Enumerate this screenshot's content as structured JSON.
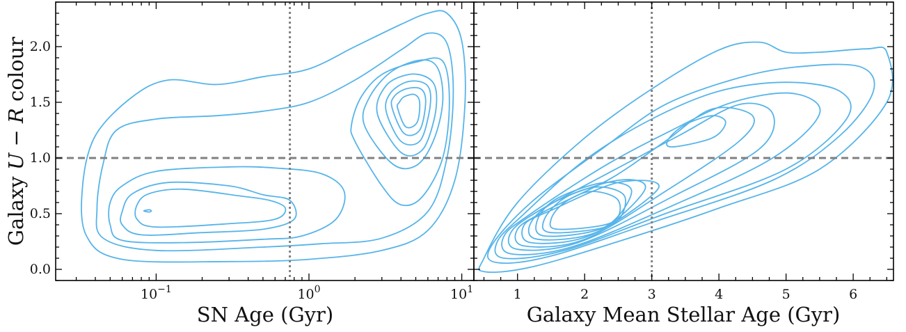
{
  "chart_data": [
    {
      "type": "contour",
      "xlabel": "SN Age (Gyr)",
      "ylabel": "Galaxy U − R colour",
      "ylabel_parts": {
        "prefix": "Galaxy ",
        "U": "U",
        "minus": " − ",
        "R": "R",
        "suffix": " colour"
      },
      "xscale": "log",
      "xlim": [
        0.022,
        12
      ],
      "ylim": [
        -0.1,
        2.4
      ],
      "x_ticks": [
        {
          "value": 0.1,
          "base": "10",
          "exp": "−1"
        },
        {
          "value": 1,
          "base": "10",
          "exp": "0"
        },
        {
          "value": 10,
          "base": "10",
          "exp": "1"
        }
      ],
      "y_ticks": [
        "0.0",
        "0.5",
        "1.0",
        "1.5",
        "2.0"
      ],
      "y_tick_values": [
        0.0,
        0.5,
        1.0,
        1.5,
        2.0
      ],
      "line_color": "#56b4e9",
      "reference_lines": {
        "horizontal_dashed_y": 1.0,
        "vertical_dotted_x": 0.75,
        "color": "#808080"
      },
      "contours": [
        {
          "level": 1,
          "points": [
            [
              0.033,
              0.75
            ],
            [
              0.035,
              0.3
            ],
            [
              0.06,
              0.09
            ],
            [
              0.3,
              0.07
            ],
            [
              1.0,
              0.09
            ],
            [
              3,
              0.17
            ],
            [
              6,
              0.35
            ],
            [
              9,
              0.8
            ],
            [
              10.5,
              1.5
            ],
            [
              10,
              2.05
            ],
            [
              8,
              2.3
            ],
            [
              6,
              2.3
            ],
            [
              4,
              2.2
            ],
            [
              2,
              2.0
            ],
            [
              1,
              1.8
            ],
            [
              0.5,
              1.73
            ],
            [
              0.25,
              1.66
            ],
            [
              0.12,
              1.7
            ],
            [
              0.07,
              1.55
            ],
            [
              0.04,
              1.2
            ]
          ]
        },
        {
          "level": 2,
          "points": [
            [
              0.041,
              0.55
            ],
            [
              0.045,
              0.28
            ],
            [
              0.1,
              0.17
            ],
            [
              0.5,
              0.2
            ],
            [
              1.2,
              0.23
            ],
            [
              3,
              0.28
            ],
            [
              6,
              0.52
            ],
            [
              8,
              1.0
            ],
            [
              8.8,
              1.6
            ],
            [
              8,
              2.03
            ],
            [
              6,
              2.12
            ],
            [
              4,
              1.97
            ],
            [
              2,
              1.7
            ],
            [
              1,
              1.5
            ],
            [
              0.5,
              1.42
            ],
            [
              0.25,
              1.38
            ],
            [
              0.1,
              1.35
            ],
            [
              0.055,
              1.25
            ],
            [
              0.045,
              0.95
            ]
          ]
        },
        {
          "level": 3,
          "points": [
            [
              0.05,
              0.4
            ],
            [
              0.06,
              0.26
            ],
            [
              0.15,
              0.24
            ],
            [
              0.5,
              0.27
            ],
            [
              0.9,
              0.3
            ],
            [
              1.5,
              0.45
            ],
            [
              1.7,
              0.7
            ],
            [
              1.2,
              0.86
            ],
            [
              0.6,
              0.91
            ],
            [
              0.3,
              0.92
            ],
            [
              0.1,
              0.88
            ],
            [
              0.06,
              0.75
            ],
            [
              0.05,
              0.6
            ]
          ]
        },
        {
          "level": 4,
          "points": [
            [
              0.06,
              0.4
            ],
            [
              0.08,
              0.31
            ],
            [
              0.2,
              0.33
            ],
            [
              0.5,
              0.36
            ],
            [
              0.8,
              0.45
            ],
            [
              0.75,
              0.62
            ],
            [
              0.5,
              0.67
            ],
            [
              0.3,
              0.75
            ],
            [
              0.12,
              0.78
            ],
            [
              0.07,
              0.68
            ],
            [
              0.06,
              0.52
            ]
          ]
        },
        {
          "level": 5,
          "points": [
            [
              0.075,
              0.45
            ],
            [
              0.1,
              0.38
            ],
            [
              0.3,
              0.41
            ],
            [
              0.6,
              0.45
            ],
            [
              0.7,
              0.55
            ],
            [
              0.55,
              0.62
            ],
            [
              0.35,
              0.66
            ],
            [
              0.15,
              0.72
            ],
            [
              0.09,
              0.68
            ],
            [
              0.075,
              0.58
            ]
          ]
        },
        {
          "level": 6,
          "points": [
            [
              0.083,
              0.525
            ],
            [
              0.09,
              0.515
            ],
            [
              0.093,
              0.525
            ],
            [
              0.09,
              0.535
            ]
          ]
        },
        {
          "level": 7,
          "points": [
            [
              2.0,
              1.15
            ],
            [
              3,
              0.75
            ],
            [
              4,
              0.58
            ],
            [
              5.5,
              0.65
            ],
            [
              7.5,
              1.0
            ],
            [
              8.3,
              1.5
            ],
            [
              7.5,
              1.87
            ],
            [
              5,
              1.86
            ],
            [
              3,
              1.75
            ],
            [
              2.2,
              1.55
            ],
            [
              1.9,
              1.3
            ]
          ]
        },
        {
          "level": 8,
          "points": [
            [
              2.3,
              1.3
            ],
            [
              3.5,
              0.95
            ],
            [
              5,
              0.93
            ],
            [
              6.5,
              1.15
            ],
            [
              7.5,
              1.5
            ],
            [
              7,
              1.8
            ],
            [
              5.5,
              1.88
            ],
            [
              3.5,
              1.78
            ],
            [
              2.5,
              1.55
            ]
          ]
        },
        {
          "level": 9,
          "points": [
            [
              2.8,
              1.4
            ],
            [
              4,
              1.05
            ],
            [
              5.5,
              1.07
            ],
            [
              6.6,
              1.35
            ],
            [
              6.8,
              1.6
            ],
            [
              6,
              1.72
            ],
            [
              4.5,
              1.75
            ],
            [
              3.2,
              1.65
            ]
          ]
        },
        {
          "level": 10,
          "points": [
            [
              3.2,
              1.42
            ],
            [
              4,
              1.15
            ],
            [
              5.3,
              1.15
            ],
            [
              6.1,
              1.4
            ],
            [
              6.2,
              1.6
            ],
            [
              5.5,
              1.68
            ],
            [
              4.3,
              1.68
            ],
            [
              3.4,
              1.58
            ]
          ]
        },
        {
          "level": 11,
          "points": [
            [
              3.5,
              1.45
            ],
            [
              4.2,
              1.22
            ],
            [
              5.3,
              1.25
            ],
            [
              5.8,
              1.5
            ],
            [
              5.4,
              1.62
            ],
            [
              4.3,
              1.62
            ],
            [
              3.6,
              1.55
            ]
          ]
        },
        {
          "level": 12,
          "points": [
            [
              3.8,
              1.45
            ],
            [
              4.3,
              1.28
            ],
            [
              5.1,
              1.32
            ],
            [
              5.3,
              1.5
            ],
            [
              4.9,
              1.57
            ],
            [
              4.2,
              1.55
            ],
            [
              3.9,
              1.5
            ]
          ]
        }
      ]
    },
    {
      "type": "contour",
      "xlabel": "Galaxy Mean Stellar Age (Gyr)",
      "xlim": [
        0.35,
        6.6
      ],
      "ylim": [
        -0.1,
        2.4
      ],
      "x_ticks": [
        "1",
        "2",
        "3",
        "4",
        "5",
        "6"
      ],
      "x_tick_values": [
        1,
        2,
        3,
        4,
        5,
        6
      ],
      "line_color": "#56b4e9",
      "reference_lines": {
        "horizontal_dashed_y": 1.0,
        "vertical_dotted_x": 3.0,
        "color": "#808080"
      },
      "contours": [
        {
          "level": 1,
          "points": [
            [
              0.5,
              0.1
            ],
            [
              0.5,
              -0.02
            ],
            [
              1.2,
              0.02
            ],
            [
              2.5,
              0.25
            ],
            [
              4,
              0.55
            ],
            [
              5.5,
              0.9
            ],
            [
              6.5,
              1.5
            ],
            [
              6.5,
              1.95
            ],
            [
              6.2,
              1.98
            ],
            [
              5.5,
              1.95
            ],
            [
              5,
              1.95
            ],
            [
              4.6,
              2.04
            ],
            [
              4,
              1.97
            ],
            [
              3,
              1.62
            ],
            [
              2,
              1.18
            ],
            [
              1,
              0.6
            ]
          ]
        },
        {
          "level": 2,
          "points": [
            [
              0.6,
              0.2
            ],
            [
              0.7,
              0.06
            ],
            [
              1.5,
              0.12
            ],
            [
              3,
              0.42
            ],
            [
              4.8,
              0.8
            ],
            [
              5.8,
              1.2
            ],
            [
              6.3,
              1.6
            ],
            [
              6.1,
              1.82
            ],
            [
              5.2,
              1.82
            ],
            [
              4.3,
              1.72
            ],
            [
              3.2,
              1.48
            ],
            [
              2.3,
              1.1
            ],
            [
              1.2,
              0.6
            ]
          ]
        },
        {
          "level": 3,
          "points": [
            [
              0.7,
              0.25
            ],
            [
              0.8,
              0.1
            ],
            [
              1.7,
              0.17
            ],
            [
              3.2,
              0.5
            ],
            [
              5,
              0.9
            ],
            [
              5.9,
              1.35
            ],
            [
              5.8,
              1.6
            ],
            [
              5,
              1.68
            ],
            [
              4,
              1.6
            ],
            [
              3,
              1.35
            ],
            [
              2,
              0.98
            ],
            [
              1.1,
              0.5
            ]
          ]
        },
        {
          "level": 4,
          "points": [
            [
              0.8,
              0.3
            ],
            [
              0.9,
              0.14
            ],
            [
              1.8,
              0.2
            ],
            [
              3.3,
              0.57
            ],
            [
              4.8,
              1.0
            ],
            [
              5.5,
              1.4
            ],
            [
              5.1,
              1.58
            ],
            [
              4.2,
              1.5
            ],
            [
              3.3,
              1.25
            ],
            [
              2.3,
              0.93
            ],
            [
              1.2,
              0.5
            ]
          ]
        },
        {
          "level": 5,
          "points": [
            [
              0.9,
              0.33
            ],
            [
              1.0,
              0.18
            ],
            [
              1.9,
              0.24
            ],
            [
              3.3,
              0.65
            ],
            [
              4.6,
              1.08
            ],
            [
              4.8,
              1.4
            ],
            [
              4.3,
              1.48
            ],
            [
              3.4,
              1.2
            ],
            [
              2.4,
              0.88
            ],
            [
              1.3,
              0.52
            ]
          ]
        },
        {
          "level": 6,
          "points": [
            [
              1.0,
              0.36
            ],
            [
              1.1,
              0.21
            ],
            [
              2,
              0.27
            ],
            [
              3.2,
              0.7
            ],
            [
              4.3,
              1.15
            ],
            [
              4.5,
              1.38
            ],
            [
              3.9,
              1.44
            ],
            [
              3.2,
              1.15
            ],
            [
              2.4,
              0.82
            ],
            [
              1.4,
              0.52
            ]
          ]
        },
        {
          "level": 7,
          "points": [
            [
              1.1,
              0.4
            ],
            [
              1.2,
              0.24
            ],
            [
              2.1,
              0.31
            ],
            [
              3.1,
              0.73
            ],
            [
              2.5,
              0.78
            ],
            [
              1.5,
              0.53
            ]
          ]
        },
        {
          "level": 8,
          "points": [
            [
              1.2,
              0.42
            ],
            [
              1.3,
              0.27
            ],
            [
              2.2,
              0.34
            ],
            [
              2.9,
              0.72
            ],
            [
              2.5,
              0.8
            ],
            [
              1.6,
              0.62
            ]
          ]
        },
        {
          "level": 9,
          "points": [
            [
              1.3,
              0.45
            ],
            [
              1.4,
              0.3
            ],
            [
              2.3,
              0.38
            ],
            [
              2.7,
              0.7
            ],
            [
              2.3,
              0.78
            ],
            [
              1.6,
              0.64
            ]
          ]
        },
        {
          "level": 10,
          "points": [
            [
              1.4,
              0.45
            ],
            [
              1.5,
              0.33
            ],
            [
              2.4,
              0.4
            ],
            [
              2.6,
              0.65
            ],
            [
              2.2,
              0.74
            ],
            [
              1.7,
              0.64
            ]
          ]
        },
        {
          "level": 11,
          "points": [
            [
              1.5,
              0.45
            ],
            [
              1.6,
              0.36
            ],
            [
              2.4,
              0.42
            ],
            [
              2.5,
              0.62
            ],
            [
              2.1,
              0.7
            ],
            [
              1.7,
              0.6
            ]
          ]
        },
        {
          "level": 12,
          "points": [
            [
              3.3,
              1.1
            ],
            [
              3.9,
              1.18
            ],
            [
              4.1,
              1.32
            ],
            [
              3.9,
              1.38
            ],
            [
              3.5,
              1.3
            ],
            [
              3.25,
              1.17
            ]
          ]
        }
      ]
    }
  ]
}
